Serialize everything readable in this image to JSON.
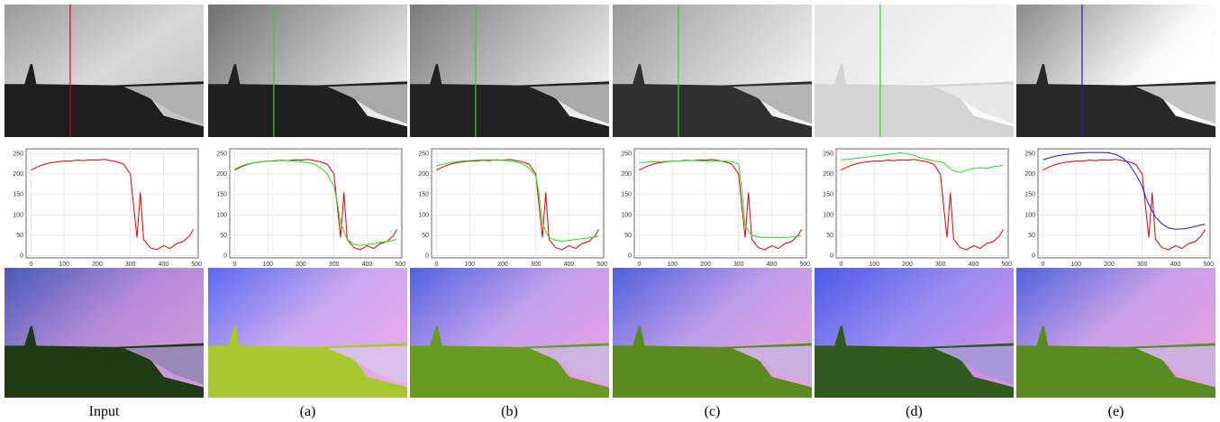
{
  "figure": {
    "x": [
      0,
      20,
      40,
      60,
      80,
      100,
      120,
      140,
      160,
      180,
      200,
      220,
      240,
      260,
      280,
      300,
      310,
      320,
      330,
      340,
      360,
      380,
      400,
      420,
      440,
      460,
      480,
      490
    ],
    "xlim": [
      -15,
      505
    ],
    "ylim": [
      -5,
      262
    ],
    "xticks": [
      0,
      100,
      200,
      300,
      400,
      500
    ],
    "yticks": [
      0,
      50,
      100,
      150,
      200,
      250
    ],
    "grid": true,
    "reference": {
      "color": "#e00000",
      "values": [
        210,
        218,
        224,
        228,
        230,
        232,
        232,
        234,
        233,
        235,
        234,
        236,
        233,
        230,
        224,
        200,
        120,
        45,
        155,
        40,
        20,
        15,
        25,
        18,
        30,
        35,
        50,
        65
      ]
    },
    "panels": [
      {
        "caption": "Input"
      },
      {
        "caption": "(a)",
        "curve": {
          "color": "#22dd22",
          "values": [
            212,
            220,
            225,
            228,
            230,
            232,
            233,
            233,
            233,
            232,
            230,
            228,
            225,
            215,
            200,
            170,
            130,
            80,
            60,
            40,
            28,
            25,
            28,
            30,
            33,
            35,
            38,
            40
          ]
        }
      },
      {
        "caption": "(b)",
        "curve": {
          "color": "#22dd22",
          "values": [
            220,
            224,
            228,
            230,
            232,
            233,
            234,
            235,
            235,
            234,
            234,
            232,
            230,
            225,
            215,
            195,
            150,
            80,
            60,
            45,
            38,
            36,
            38,
            40,
            42,
            44,
            46,
            48
          ]
        }
      },
      {
        "caption": "(c)",
        "curve": {
          "color": "#22dd22",
          "values": [
            228,
            229,
            230,
            230,
            231,
            232,
            232,
            233,
            233,
            233,
            232,
            232,
            232,
            232,
            230,
            225,
            160,
            75,
            60,
            50,
            46,
            45,
            45,
            45,
            45,
            46,
            48,
            50
          ]
        }
      },
      {
        "caption": "(d)",
        "curve": {
          "color": "#22dd22",
          "values": [
            235,
            236,
            238,
            240,
            242,
            244,
            246,
            248,
            250,
            252,
            250,
            246,
            240,
            236,
            232,
            230,
            228,
            220,
            214,
            208,
            204,
            210,
            214,
            216,
            214,
            218,
            220,
            222
          ]
        }
      },
      {
        "caption": "(e)",
        "curve": {
          "color": "#1a1ad0",
          "values": [
            235,
            240,
            244,
            247,
            249,
            251,
            252,
            253,
            253,
            253,
            252,
            248,
            240,
            225,
            200,
            170,
            145,
            125,
            110,
            95,
            78,
            68,
            65,
            66,
            68,
            72,
            76,
            77
          ]
        }
      }
    ]
  }
}
